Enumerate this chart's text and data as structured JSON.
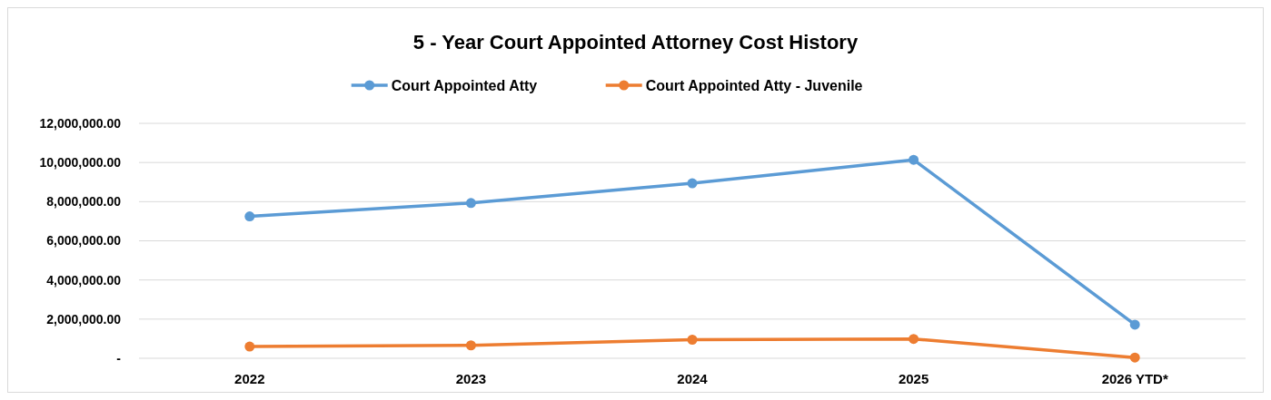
{
  "chart_data": {
    "type": "line",
    "title": "5 - Year Court Appointed Attorney Cost History",
    "categories": [
      "2022",
      "2023",
      "2024",
      "2025",
      "2026 YTD*"
    ],
    "series": [
      {
        "name": "Court Appointed Atty",
        "color": "#5b9bd5",
        "values": [
          7250000,
          7930000,
          8940000,
          10140000,
          1720000
        ]
      },
      {
        "name": "Court Appointed Atty - Juvenile",
        "color": "#ed7d31",
        "values": [
          600000,
          660000,
          950000,
          990000,
          40000
        ]
      }
    ],
    "ylim": [
      0,
      12000000
    ],
    "yticks": [
      {
        "value": 0,
        "label": "-"
      },
      {
        "value": 2000000,
        "label": "2,000,000.00"
      },
      {
        "value": 4000000,
        "label": "4,000,000.00"
      },
      {
        "value": 6000000,
        "label": "6,000,000.00"
      },
      {
        "value": 8000000,
        "label": "8,000,000.00"
      },
      {
        "value": 10000000,
        "label": "10,000,000.00"
      },
      {
        "value": 12000000,
        "label": "12,000,000.00"
      }
    ],
    "grid": "y",
    "legend": "top",
    "marker": "circle"
  }
}
